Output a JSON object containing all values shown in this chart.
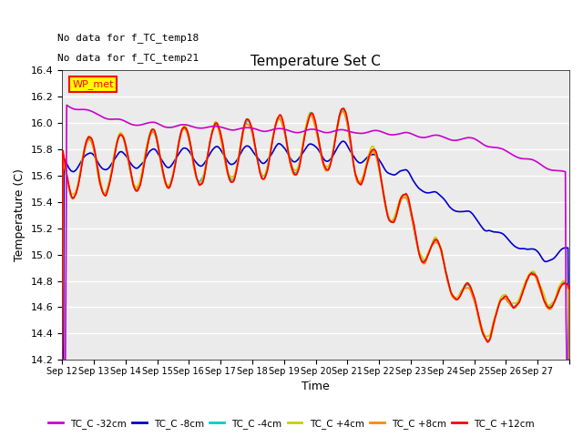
{
  "title": "Temperature Set C",
  "xlabel": "Time",
  "ylabel": "Temperature (C)",
  "ylim": [
    14.2,
    16.4
  ],
  "yticks": [
    14.2,
    14.4,
    14.6,
    14.8,
    15.0,
    15.2,
    15.4,
    15.6,
    15.8,
    16.0,
    16.2,
    16.4
  ],
  "note1": "No data for f_TC_temp18",
  "note2": "No data for f_TC_temp21",
  "wp_met_label": "WP_met",
  "wp_met_color": "#ff0000",
  "wp_met_bg": "#ffff00",
  "series": [
    {
      "label": "TC_C -32cm",
      "color": "#cc00cc",
      "lw": 1.2
    },
    {
      "label": "TC_C -8cm",
      "color": "#0000cc",
      "lw": 1.2
    },
    {
      "label": "TC_C -4cm",
      "color": "#00cccc",
      "lw": 1.2
    },
    {
      "label": "TC_C +4cm",
      "color": "#cccc00",
      "lw": 1.2
    },
    {
      "label": "TC_C +8cm",
      "color": "#ff8800",
      "lw": 1.2
    },
    {
      "label": "TC_C +12cm",
      "color": "#ff0000",
      "lw": 1.2
    }
  ],
  "xtick_labels": [
    "Sep 12",
    "Sep 13",
    "Sep 14",
    "Sep 15",
    "Sep 16",
    "Sep 17",
    "Sep 18",
    "Sep 19",
    "Sep 20",
    "Sep 21",
    "Sep 22",
    "Sep 23",
    "Sep 24",
    "Sep 25",
    "Sep 26",
    "Sep 27"
  ],
  "n_days": 16,
  "plot_bg": "#ebebeb"
}
